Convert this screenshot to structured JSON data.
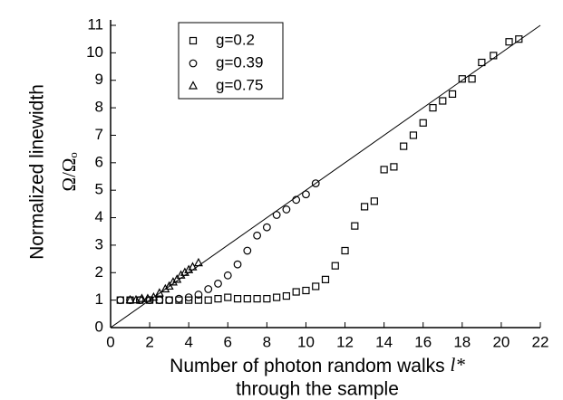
{
  "chart_data": {
    "type": "scatter",
    "xlabel": [
      "Number of photon random walks",
      "through the sample"
    ],
    "xlabel_symbol": "l*",
    "ylabel": "Normalized linewidth",
    "ylabel2": "Ω/Ωₒ",
    "xlim": [
      0,
      22
    ],
    "ylim": [
      0,
      11
    ],
    "xticks": [
      0,
      2,
      4,
      6,
      8,
      10,
      12,
      14,
      16,
      18,
      20,
      22
    ],
    "yticks": [
      0,
      1,
      2,
      3,
      4,
      5,
      6,
      7,
      8,
      9,
      10,
      11
    ],
    "reference_line": {
      "x": [
        0,
        22
      ],
      "y": [
        0,
        11
      ],
      "color": "#000000"
    },
    "legend": "upper left",
    "series": [
      {
        "name": "g=0.2",
        "marker": "square",
        "color": "#000000",
        "x": [
          0.5,
          1,
          1.5,
          2,
          2.5,
          3,
          3.5,
          4,
          4.5,
          5,
          5.5,
          6,
          6.5,
          7,
          7.5,
          8,
          8.5,
          9,
          9.5,
          10,
          10.5,
          11,
          11.5,
          12,
          12.5,
          13,
          13.5,
          14,
          14.5,
          15,
          15.5,
          16,
          16.5,
          17,
          17.5,
          18,
          18.5,
          19,
          19.6,
          20.4,
          20.9
        ],
        "values": [
          1.0,
          1.0,
          1.0,
          1.0,
          1.0,
          1.0,
          1.0,
          1.0,
          1.0,
          1.0,
          1.05,
          1.1,
          1.05,
          1.05,
          1.05,
          1.05,
          1.1,
          1.15,
          1.3,
          1.35,
          1.5,
          1.75,
          2.25,
          2.8,
          3.7,
          4.4,
          4.6,
          5.75,
          5.85,
          6.6,
          7.0,
          7.45,
          8.0,
          8.25,
          8.5,
          9.05,
          9.05,
          9.65,
          9.9,
          10.4,
          10.5
        ]
      },
      {
        "name": "g=0.39",
        "marker": "circle",
        "color": "#000000",
        "x": [
          0.5,
          1,
          1.5,
          2,
          2.5,
          3,
          3.5,
          4,
          4.5,
          5,
          5.5,
          6,
          6.5,
          7,
          7.5,
          8,
          8.5,
          9,
          9.5,
          10,
          10.5
        ],
        "values": [
          1.0,
          1.0,
          1.0,
          1.0,
          1.0,
          1.0,
          1.05,
          1.1,
          1.2,
          1.4,
          1.6,
          1.9,
          2.3,
          2.8,
          3.35,
          3.65,
          4.1,
          4.3,
          4.65,
          4.85,
          5.25
        ]
      },
      {
        "name": "g=0.75",
        "marker": "triangle",
        "color": "#000000",
        "x": [
          1,
          1.3,
          1.6,
          1.9,
          2.2,
          2.5,
          2.8,
          3,
          3.2,
          3.4,
          3.6,
          3.8,
          4,
          4.2,
          4.5
        ],
        "values": [
          1.0,
          1.0,
          1.05,
          1.05,
          1.1,
          1.25,
          1.4,
          1.5,
          1.65,
          1.75,
          1.9,
          2.0,
          2.1,
          2.2,
          2.35
        ]
      }
    ]
  }
}
